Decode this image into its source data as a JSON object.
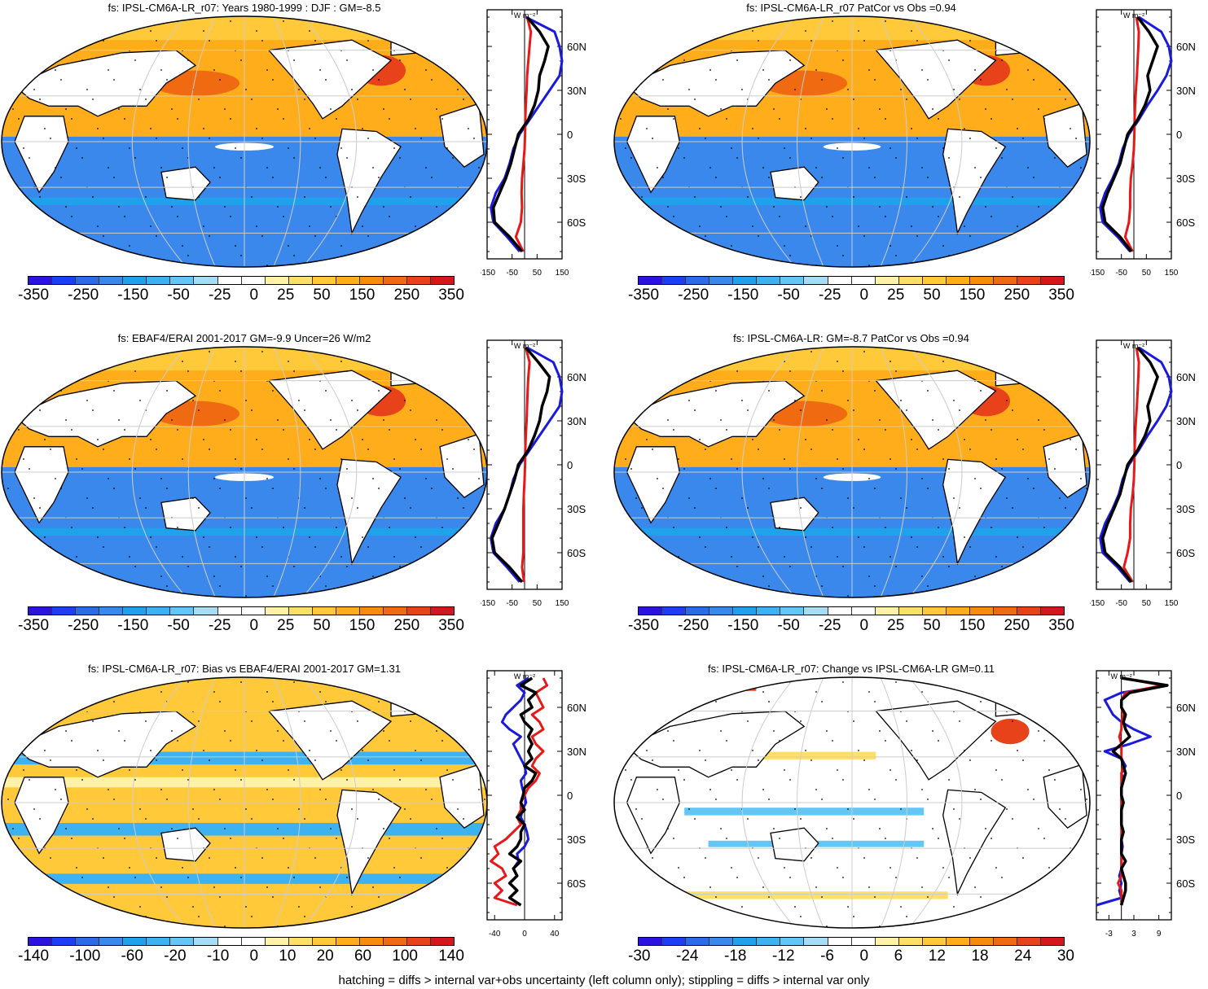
{
  "footer": "hatching = diffs > internal var+obs uncertainty (left column only); stippling = diffs > internal var only",
  "colorbar_colors": [
    "#2c12e0",
    "#1e3ef5",
    "#2c6ae8",
    "#3a88ec",
    "#1fa1ec",
    "#3cb2f0",
    "#63c6f4",
    "#a6dcf4",
    "#ffffff",
    "#ffffff",
    "#fff2a8",
    "#ffe066",
    "#ffc93a",
    "#ffad1a",
    "#f78c0c",
    "#ef6a10",
    "#e8421a",
    "#d4171c"
  ],
  "colors": {
    "blue_line": "#1a1adf",
    "red_line": "#e81818",
    "black_line": "#000000"
  },
  "profile_units": "W m⁻²",
  "lat_labels": [
    "60N",
    "30N",
    "0",
    "30S",
    "60S"
  ],
  "chart_data": [
    {
      "type": "heatmap",
      "title": "fs: IPSL-CM6A-LR_r07: Years 1980-1999 : DJF : GM=-8.5",
      "colorbar_ticks": [
        "-350",
        "-250",
        "-150",
        "-50",
        "-25",
        "0",
        "25",
        "50",
        "150",
        "250",
        "350"
      ],
      "profile": {
        "xlim": [
          -150,
          150
        ],
        "xticks": [
          "-150",
          "-50",
          "50",
          "150"
        ],
        "lat": [
          80,
          70,
          60,
          50,
          40,
          30,
          20,
          10,
          0,
          -10,
          -20,
          -30,
          -40,
          -50,
          -60,
          -70,
          -80
        ],
        "series": [
          {
            "color": "blue",
            "values": [
              5,
              120,
              140,
              150,
              140,
              100,
              60,
              20,
              -20,
              -45,
              -60,
              -80,
              -115,
              -135,
              -125,
              -70,
              -20
            ]
          },
          {
            "color": "red",
            "values": [
              10,
              25,
              20,
              15,
              10,
              8,
              5,
              3,
              2,
              0,
              -5,
              -10,
              -12,
              -10,
              -15,
              -35,
              -5
            ]
          },
          {
            "color": "black",
            "values": [
              10,
              60,
              95,
              80,
              60,
              55,
              40,
              15,
              -25,
              -40,
              -55,
              -75,
              -100,
              -125,
              -120,
              -60,
              -10
            ]
          }
        ]
      }
    },
    {
      "type": "heatmap",
      "title": "fs: IPSL-CM6A-LR_r07 PatCor vs Obs =0.94",
      "colorbar_ticks": [
        "-350",
        "-250",
        "-150",
        "-50",
        "-25",
        "0",
        "25",
        "50",
        "150",
        "250",
        "350"
      ],
      "profile": {
        "xlim": [
          -150,
          150
        ],
        "xticks": [
          "-150",
          "-50",
          "50",
          "150"
        ],
        "lat": [
          80,
          70,
          60,
          50,
          40,
          30,
          20,
          10,
          0,
          -10,
          -20,
          -30,
          -40,
          -50,
          -60,
          -70,
          -80
        ],
        "series": [
          {
            "color": "blue",
            "values": [
              20,
              110,
              140,
              150,
              130,
              95,
              55,
              20,
              -20,
              -45,
              -60,
              -85,
              -115,
              -135,
              -125,
              -65,
              -15
            ]
          },
          {
            "color": "red",
            "values": [
              10,
              20,
              18,
              15,
              12,
              8,
              5,
              3,
              2,
              0,
              -5,
              -12,
              -15,
              -15,
              -20,
              -35,
              -5
            ]
          },
          {
            "color": "black",
            "values": [
              15,
              60,
              95,
              75,
              55,
              65,
              45,
              15,
              -25,
              -40,
              -55,
              -80,
              -105,
              -125,
              -115,
              -55,
              -10
            ]
          }
        ]
      }
    },
    {
      "type": "heatmap",
      "title": "fs: EBAF4/ERAI 2001-2017 GM=-9.9 Uncer=26 W/m2",
      "colorbar_ticks": [
        "-350",
        "-250",
        "-150",
        "-50",
        "-25",
        "0",
        "25",
        "50",
        "150",
        "250",
        "350"
      ],
      "profile": {
        "xlim": [
          -150,
          150
        ],
        "xticks": [
          "-150",
          "-50",
          "50",
          "150"
        ],
        "lat": [
          80,
          70,
          60,
          50,
          40,
          30,
          20,
          10,
          0,
          -10,
          -20,
          -30,
          -40,
          -50,
          -60,
          -70,
          -80
        ],
        "series": [
          {
            "color": "blue",
            "values": [
              10,
              115,
              140,
              150,
              140,
              100,
              60,
              20,
              -20,
              -45,
              -60,
              -80,
              -115,
              -135,
              -125,
              -70,
              -20
            ]
          },
          {
            "color": "red",
            "values": [
              5,
              20,
              15,
              12,
              10,
              8,
              5,
              3,
              2,
              0,
              -3,
              -5,
              -5,
              -5,
              -5,
              -10,
              -2
            ]
          },
          {
            "color": "black",
            "values": [
              5,
              55,
              100,
              90,
              70,
              60,
              40,
              15,
              -25,
              -40,
              -60,
              -80,
              -105,
              -130,
              -120,
              -60,
              -10
            ]
          }
        ]
      }
    },
    {
      "type": "heatmap",
      "title": "fs: IPSL-CM6A-LR: GM=-8.7 PatCor vs Obs =0.94",
      "colorbar_ticks": [
        "-350",
        "-250",
        "-150",
        "-50",
        "-25",
        "0",
        "25",
        "50",
        "150",
        "250",
        "350"
      ],
      "profile": {
        "xlim": [
          -150,
          150
        ],
        "xticks": [
          "-150",
          "-50",
          "50",
          "150"
        ],
        "lat": [
          80,
          70,
          60,
          50,
          40,
          30,
          20,
          10,
          0,
          -10,
          -20,
          -30,
          -40,
          -50,
          -60,
          -70,
          -80
        ],
        "series": [
          {
            "color": "blue",
            "values": [
              20,
              110,
              140,
              150,
              130,
              95,
              55,
              20,
              -20,
              -45,
              -60,
              -85,
              -115,
              -135,
              -125,
              -65,
              -15
            ]
          },
          {
            "color": "red",
            "values": [
              10,
              20,
              18,
              15,
              12,
              8,
              5,
              3,
              2,
              0,
              -5,
              -12,
              -15,
              -15,
              -25,
              -40,
              -5
            ]
          },
          {
            "color": "black",
            "values": [
              15,
              65,
              95,
              75,
              55,
              65,
              45,
              15,
              -25,
              -40,
              -55,
              -80,
              -105,
              -125,
              -115,
              -55,
              -10
            ]
          }
        ]
      }
    },
    {
      "type": "heatmap",
      "title": "fs: IPSL-CM6A-LR_r07: Bias vs EBAF4/ERAI 2001-2017 GM=1.31",
      "colorbar_ticks": [
        "-140",
        "-100",
        "-60",
        "-20",
        "-10",
        "0",
        "10",
        "20",
        "60",
        "100",
        "140"
      ],
      "profile": {
        "xlim": [
          -50,
          50
        ],
        "xticks": [
          "-40",
          "0",
          "40"
        ],
        "lat": [
          80,
          75,
          70,
          65,
          60,
          55,
          50,
          45,
          40,
          35,
          30,
          25,
          20,
          15,
          10,
          5,
          0,
          -5,
          -10,
          -15,
          -20,
          -25,
          -30,
          -35,
          -40,
          -45,
          -50,
          -55,
          -60,
          -65,
          -70,
          -75
        ],
        "series": [
          {
            "color": "blue",
            "values": [
              5,
              -10,
              0,
              -5,
              -15,
              -25,
              -30,
              -20,
              -5,
              -15,
              -10,
              -5,
              0,
              2,
              -5,
              -3,
              0,
              2,
              -3,
              -5,
              0,
              3,
              5,
              0,
              -10,
              -8,
              -15,
              -10,
              -20,
              -10,
              -20,
              -5
            ]
          },
          {
            "color": "red",
            "values": [
              25,
              30,
              15,
              20,
              25,
              10,
              20,
              25,
              10,
              15,
              25,
              15,
              10,
              20,
              15,
              5,
              0,
              -5,
              -5,
              -10,
              -5,
              -15,
              -25,
              -40,
              -35,
              -45,
              -30,
              -25,
              -40,
              -30,
              -40,
              -10
            ]
          },
          {
            "color": "black",
            "values": [
              10,
              -5,
              15,
              5,
              10,
              -5,
              0,
              10,
              5,
              10,
              5,
              10,
              0,
              15,
              10,
              0,
              -2,
              -5,
              0,
              -10,
              0,
              -5,
              -5,
              -10,
              -20,
              -5,
              -15,
              -10,
              -20,
              -10,
              -20,
              -5
            ]
          }
        ]
      }
    },
    {
      "type": "heatmap",
      "title": "fs: IPSL-CM6A-LR_r07: Change vs IPSL-CM6A-LR GM=0.11",
      "colorbar_ticks": [
        "-30",
        "-24",
        "-18",
        "-12",
        "-6",
        "0",
        "6",
        "12",
        "18",
        "24",
        "30"
      ],
      "profile": {
        "xlim": [
          -6,
          12
        ],
        "xticks": [
          "-3",
          "3",
          "9"
        ],
        "lat": [
          80,
          75,
          70,
          65,
          60,
          55,
          50,
          45,
          40,
          35,
          30,
          25,
          20,
          15,
          10,
          5,
          0,
          -5,
          -10,
          -15,
          -20,
          -25,
          -30,
          -35,
          -40,
          -45,
          -50,
          -55,
          -60,
          -65,
          -70,
          -75
        ],
        "series": [
          {
            "color": "blue",
            "values": [
              0,
              11,
              0,
              -4,
              -3,
              -2,
              0,
              3,
              7,
              2,
              -4,
              0,
              1,
              0,
              0.5,
              0,
              0,
              0,
              0,
              0,
              0,
              0.5,
              0,
              0.3,
              0,
              0,
              0,
              -0.5,
              0,
              -0.5,
              0,
              -6
            ]
          },
          {
            "color": "red",
            "values": [
              0,
              10,
              1,
              0,
              0,
              0.5,
              0,
              0,
              -0.5,
              0,
              0,
              0,
              0.5,
              0,
              0,
              0,
              0,
              0,
              0,
              0,
              0,
              0,
              0,
              0,
              0,
              0,
              0,
              0,
              -0.8,
              0,
              0,
              0
            ]
          },
          {
            "color": "black",
            "values": [
              0,
              11,
              2,
              0,
              0,
              1,
              0.5,
              1,
              2,
              0,
              -2,
              0,
              0.5,
              1,
              0.5,
              0,
              0,
              0.5,
              0,
              0,
              0,
              0.5,
              0,
              0,
              0,
              1,
              0,
              0.5,
              1,
              1,
              0.5,
              0
            ]
          }
        ]
      }
    }
  ]
}
